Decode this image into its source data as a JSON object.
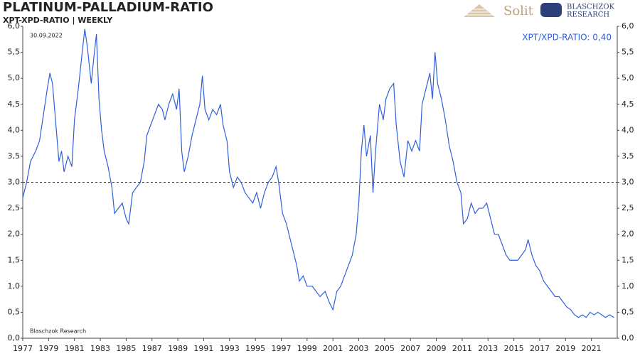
{
  "chart_data": {
    "type": "line",
    "title": "PLATINUM-PALLADIUM-RATIO",
    "subtitle": "XPT-XPD-RATIO | WEEKLY",
    "annotations": {
      "date": "30.09.2022",
      "current": "XPT/XPD-RATIO: 0,40",
      "source": "Blaschzok Research"
    },
    "logos": [
      "Solit",
      "BLASCHZOK",
      "RESEARCH"
    ],
    "x": [
      1977.0,
      1977.3,
      1977.6,
      1978.0,
      1978.3,
      1978.6,
      1978.9,
      1979.1,
      1979.3,
      1979.6,
      1979.8,
      1980.0,
      1980.2,
      1980.5,
      1980.8,
      1981.0,
      1981.3,
      1981.6,
      1981.8,
      1982.0,
      1982.3,
      1982.5,
      1982.7,
      1982.9,
      1983.1,
      1983.3,
      1983.6,
      1983.9,
      1984.1,
      1984.4,
      1984.7,
      1985.0,
      1985.2,
      1985.5,
      1985.8,
      1986.1,
      1986.4,
      1986.6,
      1986.9,
      1987.2,
      1987.5,
      1987.8,
      1988.0,
      1988.3,
      1988.6,
      1988.9,
      1989.1,
      1989.3,
      1989.5,
      1989.8,
      1990.1,
      1990.4,
      1990.7,
      1990.9,
      1991.1,
      1991.4,
      1991.7,
      1992.0,
      1992.3,
      1992.5,
      1992.8,
      1993.0,
      1993.3,
      1993.6,
      1993.9,
      1994.2,
      1994.5,
      1994.8,
      1995.1,
      1995.4,
      1995.7,
      1996.0,
      1996.3,
      1996.6,
      1996.8,
      1997.1,
      1997.4,
      1997.7,
      1998.0,
      1998.2,
      1998.4,
      1998.7,
      1999.0,
      1999.4,
      1999.7,
      2000.0,
      2000.4,
      2000.7,
      2001.0,
      2001.3,
      2001.6,
      2001.9,
      2002.2,
      2002.5,
      2002.8,
      2003.0,
      2003.2,
      2003.4,
      2003.6,
      2003.9,
      2004.1,
      2004.3,
      2004.6,
      2004.9,
      2005.1,
      2005.4,
      2005.7,
      2005.9,
      2006.2,
      2006.5,
      2006.8,
      2007.1,
      2007.4,
      2007.7,
      2007.9,
      2008.2,
      2008.5,
      2008.7,
      2008.9,
      2009.1,
      2009.4,
      2009.7,
      2010.0,
      2010.3,
      2010.6,
      2010.9,
      2011.1,
      2011.4,
      2011.7,
      2012.0,
      2012.3,
      2012.6,
      2012.9,
      2013.2,
      2013.5,
      2013.8,
      2014.1,
      2014.4,
      2014.7,
      2015.0,
      2015.3,
      2015.6,
      2015.9,
      2016.1,
      2016.4,
      2016.7,
      2017.0,
      2017.3,
      2017.6,
      2017.9,
      2018.2,
      2018.5,
      2018.8,
      2019.1,
      2019.4,
      2019.7,
      2020.0,
      2020.3,
      2020.6,
      2020.9,
      2021.2,
      2021.5,
      2021.8,
      2022.1,
      2022.4,
      2022.75
    ],
    "series": [
      {
        "color": "#2f5fdc",
        "values": [
          2.7,
          3.0,
          3.4,
          3.6,
          3.8,
          4.3,
          4.8,
          5.1,
          4.9,
          4.0,
          3.4,
          3.6,
          3.2,
          3.5,
          3.3,
          4.2,
          4.8,
          5.5,
          5.95,
          5.6,
          4.9,
          5.4,
          5.85,
          4.6,
          4.0,
          3.6,
          3.3,
          2.9,
          2.4,
          2.5,
          2.6,
          2.3,
          2.2,
          2.8,
          2.9,
          3.0,
          3.4,
          3.9,
          4.1,
          4.3,
          4.5,
          4.4,
          4.2,
          4.5,
          4.7,
          4.4,
          4.8,
          3.6,
          3.2,
          3.5,
          3.9,
          4.2,
          4.5,
          5.05,
          4.4,
          4.2,
          4.4,
          4.3,
          4.5,
          4.1,
          3.8,
          3.2,
          2.9,
          3.1,
          3.0,
          2.8,
          2.7,
          2.6,
          2.8,
          2.5,
          2.8,
          3.0,
          3.1,
          3.3,
          3.0,
          2.4,
          2.2,
          1.9,
          1.6,
          1.4,
          1.1,
          1.2,
          1.0,
          1.0,
          0.9,
          0.8,
          0.9,
          0.7,
          0.55,
          0.9,
          1.0,
          1.2,
          1.4,
          1.6,
          2.0,
          2.6,
          3.6,
          4.1,
          3.5,
          3.9,
          2.8,
          3.6,
          4.5,
          4.2,
          4.6,
          4.8,
          4.9,
          4.1,
          3.4,
          3.1,
          3.8,
          3.6,
          3.8,
          3.6,
          4.5,
          4.8,
          5.1,
          4.6,
          5.5,
          4.9,
          4.6,
          4.2,
          3.7,
          3.4,
          3.0,
          2.8,
          2.2,
          2.3,
          2.6,
          2.4,
          2.5,
          2.5,
          2.6,
          2.3,
          2.0,
          2.0,
          1.8,
          1.6,
          1.5,
          1.5,
          1.5,
          1.6,
          1.7,
          1.9,
          1.6,
          1.4,
          1.3,
          1.1,
          1.0,
          0.9,
          0.8,
          0.8,
          0.7,
          0.6,
          0.55,
          0.45,
          0.4,
          0.45,
          0.4,
          0.5,
          0.45,
          0.5,
          0.45,
          0.4,
          0.45,
          0.4
        ]
      }
    ],
    "xlim": [
      1977,
      2023
    ],
    "xticks": [
      1977,
      1979,
      1981,
      1983,
      1985,
      1987,
      1989,
      1991,
      1993,
      1995,
      1997,
      1999,
      2001,
      2003,
      2005,
      2007,
      2009,
      2011,
      2013,
      2015,
      2017,
      2019,
      2021
    ],
    "ylim": [
      0,
      6
    ],
    "yticks": [
      {
        "value": 0,
        "label": "0,0"
      },
      {
        "value": 0.5,
        "label": "0,5"
      },
      {
        "value": 1,
        "label": "1,0"
      },
      {
        "value": 1.5,
        "label": "1,5"
      },
      {
        "value": 2,
        "label": "2,0"
      },
      {
        "value": 2.5,
        "label": "2,5"
      },
      {
        "value": 3,
        "label": "3,0"
      },
      {
        "value": 3.5,
        "label": "3,5"
      },
      {
        "value": 4,
        "label": "4,0"
      },
      {
        "value": 4.5,
        "label": "4,5"
      },
      {
        "value": 5,
        "label": "5,0"
      },
      {
        "value": 5.5,
        "label": "5,5"
      },
      {
        "value": 6,
        "label": "6,0"
      }
    ],
    "reference_line": 3,
    "grid": false
  }
}
